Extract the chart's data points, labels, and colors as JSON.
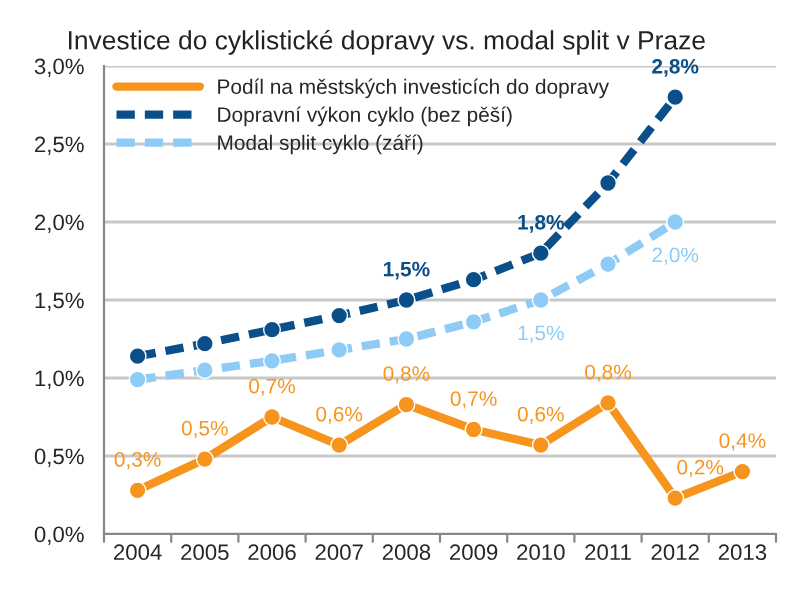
{
  "chart_data": {
    "type": "line",
    "title": "Investice do cyklistické dopravy vs. modal split v Praze",
    "categories": [
      "2004",
      "2005",
      "2006",
      "2007",
      "2008",
      "2009",
      "2010",
      "2011",
      "2012",
      "2013"
    ],
    "series": [
      {
        "name": "Podíl na městských investicích do dopravy",
        "color": "#f7941d",
        "line_style": "solid",
        "values": [
          0.28,
          0.48,
          0.75,
          0.57,
          0.83,
          0.67,
          0.57,
          0.84,
          0.23,
          0.4
        ],
        "value_labels": [
          "0,3%",
          "0,5%",
          "0,7%",
          "0,6%",
          "0,8%",
          "0,7%",
          "0,6%",
          "0,8%",
          "0,2%",
          "0,4%"
        ]
      },
      {
        "name": "Dopravní výkon cyklo (bez pěší)",
        "color": "#0b4f8a",
        "line_style": "dashed",
        "values": [
          1.14,
          1.22,
          1.31,
          1.4,
          1.5,
          1.63,
          1.8,
          2.25,
          2.8,
          null
        ],
        "value_labels": [
          null,
          null,
          null,
          null,
          "1,5%",
          null,
          "1,8%",
          null,
          "2,8%",
          null
        ]
      },
      {
        "name": "Modal split cyklo (září)",
        "color": "#8ecbf5",
        "line_style": "dashed",
        "values": [
          0.99,
          1.05,
          1.11,
          1.18,
          1.25,
          1.36,
          1.5,
          1.73,
          2.0,
          null
        ],
        "value_labels": [
          null,
          null,
          null,
          null,
          null,
          null,
          "1,5%",
          null,
          "2,0%",
          null
        ]
      }
    ],
    "ylim": [
      0,
      3
    ],
    "yticks": [
      {
        "value": 0,
        "label": "0,0%"
      },
      {
        "value": 0.5,
        "label": "0,5%"
      },
      {
        "value": 1,
        "label": "1,0%"
      },
      {
        "value": 1.5,
        "label": "1,5%"
      },
      {
        "value": 2,
        "label": "2,0%"
      },
      {
        "value": 2.5,
        "label": "2,5%"
      },
      {
        "value": 3,
        "label": "3,0%"
      }
    ],
    "grid": "y",
    "legend": "top left",
    "marker": "circle"
  }
}
